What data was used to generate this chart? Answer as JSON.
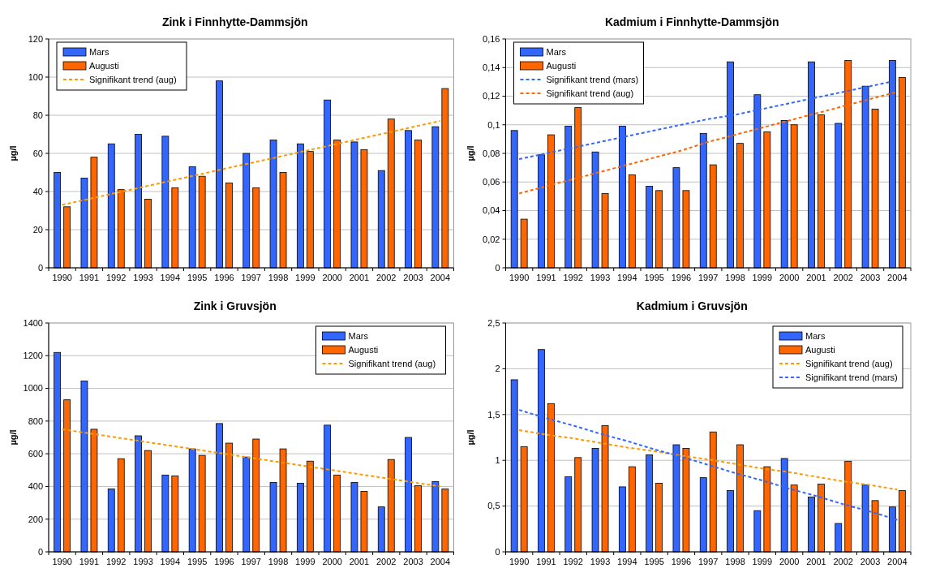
{
  "chart_data": [
    {
      "type": "bar",
      "title": "Zink i Finnhytte-Dammsjön",
      "ylabel": "µg/l",
      "categories": [
        "1990",
        "1991",
        "1992",
        "1993",
        "1994",
        "1995",
        "1996",
        "1997",
        "1998",
        "1999",
        "2000",
        "2001",
        "2002",
        "2003",
        "2004"
      ],
      "ylim": [
        0,
        120
      ],
      "yticks": [
        0,
        20,
        40,
        60,
        80,
        100,
        120
      ],
      "grid": "y",
      "legend": "top left",
      "series": [
        {
          "name": "Mars",
          "color": "#3366ff",
          "values": [
            50,
            47,
            65,
            70,
            69,
            53,
            98,
            60,
            67,
            65,
            88,
            66,
            51,
            72,
            74
          ]
        },
        {
          "name": "Augusti",
          "color": "#ff6600",
          "values": [
            32,
            58,
            41,
            36,
            42,
            48,
            44.5,
            42,
            50,
            61,
            67,
            62,
            78,
            67,
            94
          ]
        },
        {
          "name": "Signifikant trend (aug)",
          "type": "line",
          "line_style": "dashed",
          "color": "#ff9900",
          "values": [
            33,
            36.1,
            39.3,
            42.4,
            45.6,
            48.7,
            51.9,
            55,
            58.1,
            61.3,
            64.4,
            67.6,
            70.7,
            73.9,
            77
          ]
        }
      ]
    },
    {
      "type": "bar",
      "title": "Kadmium i Finnhytte-Dammsjön",
      "ylabel": "µg/l",
      "categories": [
        "1990",
        "1991",
        "1992",
        "1993",
        "1994",
        "1995",
        "1996",
        "1997",
        "1998",
        "1999",
        "2000",
        "2001",
        "2002",
        "2003",
        "2004"
      ],
      "ylim": [
        0,
        0.16
      ],
      "yticks": [
        0,
        {
          "value": 0.02,
          "label": "0,02"
        },
        {
          "value": 0.04,
          "label": "0,04"
        },
        {
          "value": 0.06,
          "label": "0,06"
        },
        {
          "value": 0.08,
          "label": "0,08"
        },
        {
          "value": 0.1,
          "label": "0,1"
        },
        {
          "value": 0.12,
          "label": "0,12"
        },
        {
          "value": 0.14,
          "label": "0,14"
        },
        {
          "value": 0.16,
          "label": "0,16"
        }
      ],
      "grid": "y",
      "legend": "top left",
      "series": [
        {
          "name": "Mars",
          "color": "#3366ff",
          "values": [
            0.096,
            0.079,
            0.099,
            0.081,
            0.099,
            0.057,
            0.07,
            0.094,
            0.144,
            0.121,
            0.103,
            0.144,
            0.101,
            0.127,
            0.145
          ]
        },
        {
          "name": "Augusti",
          "color": "#ff6600",
          "values": [
            0.034,
            0.093,
            0.112,
            0.052,
            0.065,
            0.054,
            0.054,
            0.072,
            0.087,
            0.095,
            0.1,
            0.107,
            0.145,
            0.111,
            0.133
          ]
        },
        {
          "name": "Signifikant trend (mars)",
          "type": "line",
          "line_style": "dashed",
          "color": "#3366ff",
          "values": [
            0.076,
            0.08,
            0.084,
            0.088,
            0.092,
            0.096,
            0.1,
            0.104,
            0.107,
            0.111,
            0.115,
            0.119,
            0.123,
            0.127,
            0.131
          ]
        },
        {
          "name": "Signifikant trend (aug)",
          "type": "line",
          "line_style": "dashed",
          "color": "#ff6600",
          "values": [
            0.052,
            0.057,
            0.062,
            0.067,
            0.072,
            0.077,
            0.082,
            0.088,
            0.093,
            0.098,
            0.103,
            0.108,
            0.113,
            0.118,
            0.123
          ]
        }
      ]
    },
    {
      "type": "bar",
      "title": "Zink i Gruvsjön",
      "ylabel": "µg/l",
      "categories": [
        "1990",
        "1991",
        "1992",
        "1993",
        "1994",
        "1995",
        "1996",
        "1997",
        "1998",
        "1999",
        "2000",
        "2001",
        "2002",
        "2003",
        "2004"
      ],
      "ylim": [
        0,
        1400
      ],
      "yticks": [
        0,
        200,
        400,
        600,
        800,
        1000,
        1200,
        1400
      ],
      "grid": "y",
      "legend": "top right",
      "series": [
        {
          "name": "Mars",
          "color": "#3366ff",
          "values": [
            1220,
            1045,
            385,
            710,
            470,
            630,
            785,
            580,
            425,
            420,
            775,
            425,
            275,
            700,
            430
          ]
        },
        {
          "name": "Augusti",
          "color": "#ff6600",
          "values": [
            930,
            750,
            570,
            620,
            465,
            590,
            665,
            690,
            630,
            555,
            470,
            370,
            565,
            405,
            385
          ]
        },
        {
          "name": "Signifikant trend (aug)",
          "type": "line",
          "line_style": "dashed",
          "color": "#ff9900",
          "values": [
            750,
            725,
            700,
            675,
            650,
            625,
            600,
            575,
            550,
            525,
            500,
            475,
            450,
            425,
            400
          ]
        }
      ]
    },
    {
      "type": "bar",
      "title": "Kadmium i Gruvsjön",
      "ylabel": "µg/l",
      "categories": [
        "1990",
        "1991",
        "1992",
        "1993",
        "1994",
        "1995",
        "1996",
        "1997",
        "1998",
        "1999",
        "2000",
        "2001",
        "2002",
        "2003",
        "2004"
      ],
      "ylim": [
        0,
        2.5
      ],
      "yticks": [
        0,
        {
          "value": 0.5,
          "label": "0,5"
        },
        1,
        {
          "value": 1.5,
          "label": "1,5"
        },
        2,
        {
          "value": 2.5,
          "label": "2,5"
        }
      ],
      "grid": "y",
      "legend": "top right",
      "series": [
        {
          "name": "Mars",
          "color": "#3366ff",
          "values": [
            1.88,
            2.21,
            0.82,
            1.13,
            0.71,
            1.06,
            1.17,
            0.81,
            0.67,
            0.45,
            1.02,
            0.6,
            0.31,
            0.73,
            0.49
          ]
        },
        {
          "name": "Augusti",
          "color": "#ff6600",
          "values": [
            1.15,
            1.62,
            1.03,
            1.38,
            0.93,
            0.75,
            1.13,
            1.31,
            1.17,
            0.93,
            0.73,
            0.74,
            0.99,
            0.56,
            0.67
          ]
        },
        {
          "name": "Signifikant trend (aug)",
          "type": "line",
          "line_style": "dashed",
          "color": "#ff9900",
          "values": [
            1.33,
            1.28,
            1.24,
            1.19,
            1.14,
            1.1,
            1.05,
            1.01,
            0.96,
            0.91,
            0.87,
            0.82,
            0.77,
            0.73,
            0.68
          ]
        },
        {
          "name": "Signifikant trend (mars)",
          "type": "line",
          "line_style": "dashed",
          "color": "#3366ff",
          "values": [
            1.55,
            1.46,
            1.38,
            1.29,
            1.21,
            1.12,
            1.04,
            0.95,
            0.86,
            0.78,
            0.69,
            0.61,
            0.52,
            0.44,
            0.35
          ]
        }
      ]
    }
  ]
}
